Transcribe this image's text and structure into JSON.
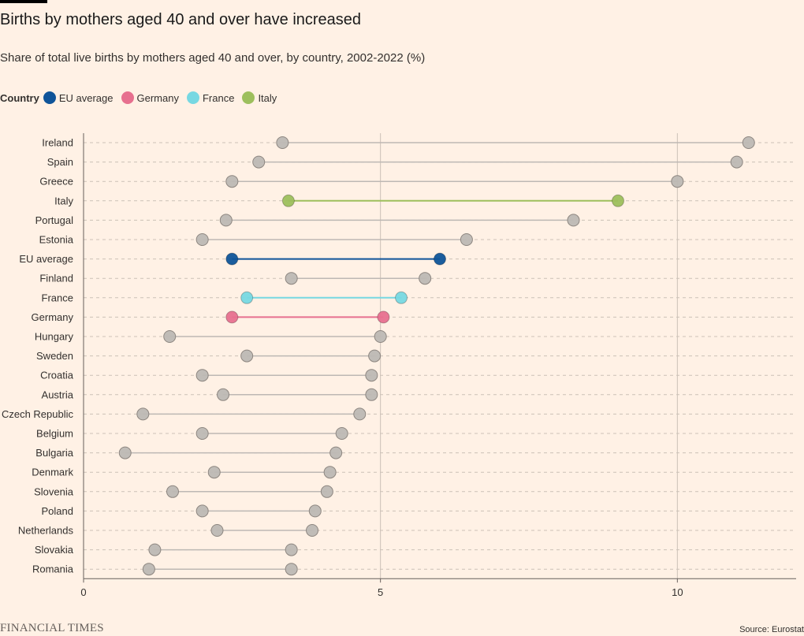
{
  "header": {
    "title": "Births by mothers aged 40 and over have increased",
    "subtitle": "Share of total live births by mothers aged 40 and over, by country, 2002-2022 (%)"
  },
  "legend": {
    "title": "Country",
    "items": [
      {
        "label": "EU average",
        "color": "#0f5499"
      },
      {
        "label": "Germany",
        "color": "#e7708f"
      },
      {
        "label": "France",
        "color": "#77d8e2"
      },
      {
        "label": "Italy",
        "color": "#9dbf5d"
      }
    ]
  },
  "footer": {
    "logo": "FINANCIAL TIMES",
    "source": "Source: Eurostat"
  },
  "chart_data": {
    "type": "dumbbell",
    "x_ticks": [
      0,
      5,
      10
    ],
    "xlim": [
      0,
      12
    ],
    "grid": true,
    "default_color": "#bdb8b4",
    "rows": [
      {
        "country": "Ireland",
        "start": 3.35,
        "end": 11.2
      },
      {
        "country": "Spain",
        "start": 2.95,
        "end": 11.0
      },
      {
        "country": "Greece",
        "start": 2.5,
        "end": 10.0
      },
      {
        "country": "Italy",
        "start": 3.45,
        "end": 9.0,
        "color": "#9dbf5d"
      },
      {
        "country": "Portugal",
        "start": 2.4,
        "end": 8.25
      },
      {
        "country": "Estonia",
        "start": 2.0,
        "end": 6.45
      },
      {
        "country": "EU average",
        "start": 2.5,
        "end": 6.0,
        "color": "#0f5499"
      },
      {
        "country": "Finland",
        "start": 3.5,
        "end": 5.75
      },
      {
        "country": "France",
        "start": 2.75,
        "end": 5.35,
        "color": "#77d8e2"
      },
      {
        "country": "Germany",
        "start": 2.5,
        "end": 5.05,
        "color": "#e7708f"
      },
      {
        "country": "Hungary",
        "start": 1.45,
        "end": 5.0
      },
      {
        "country": "Sweden",
        "start": 2.75,
        "end": 4.9
      },
      {
        "country": "Croatia",
        "start": 2.0,
        "end": 4.85
      },
      {
        "country": "Austria",
        "start": 2.35,
        "end": 4.85
      },
      {
        "country": "Czech Republic",
        "start": 1.0,
        "end": 4.65
      },
      {
        "country": "Belgium",
        "start": 2.0,
        "end": 4.35
      },
      {
        "country": "Bulgaria",
        "start": 0.7,
        "end": 4.25
      },
      {
        "country": "Denmark",
        "start": 2.2,
        "end": 4.15
      },
      {
        "country": "Slovenia",
        "start": 1.5,
        "end": 4.1
      },
      {
        "country": "Poland",
        "start": 2.0,
        "end": 3.9
      },
      {
        "country": "Netherlands",
        "start": 2.25,
        "end": 3.85
      },
      {
        "country": "Slovakia",
        "start": 1.2,
        "end": 3.5
      },
      {
        "country": "Romania",
        "start": 1.1,
        "end": 3.5
      }
    ]
  }
}
